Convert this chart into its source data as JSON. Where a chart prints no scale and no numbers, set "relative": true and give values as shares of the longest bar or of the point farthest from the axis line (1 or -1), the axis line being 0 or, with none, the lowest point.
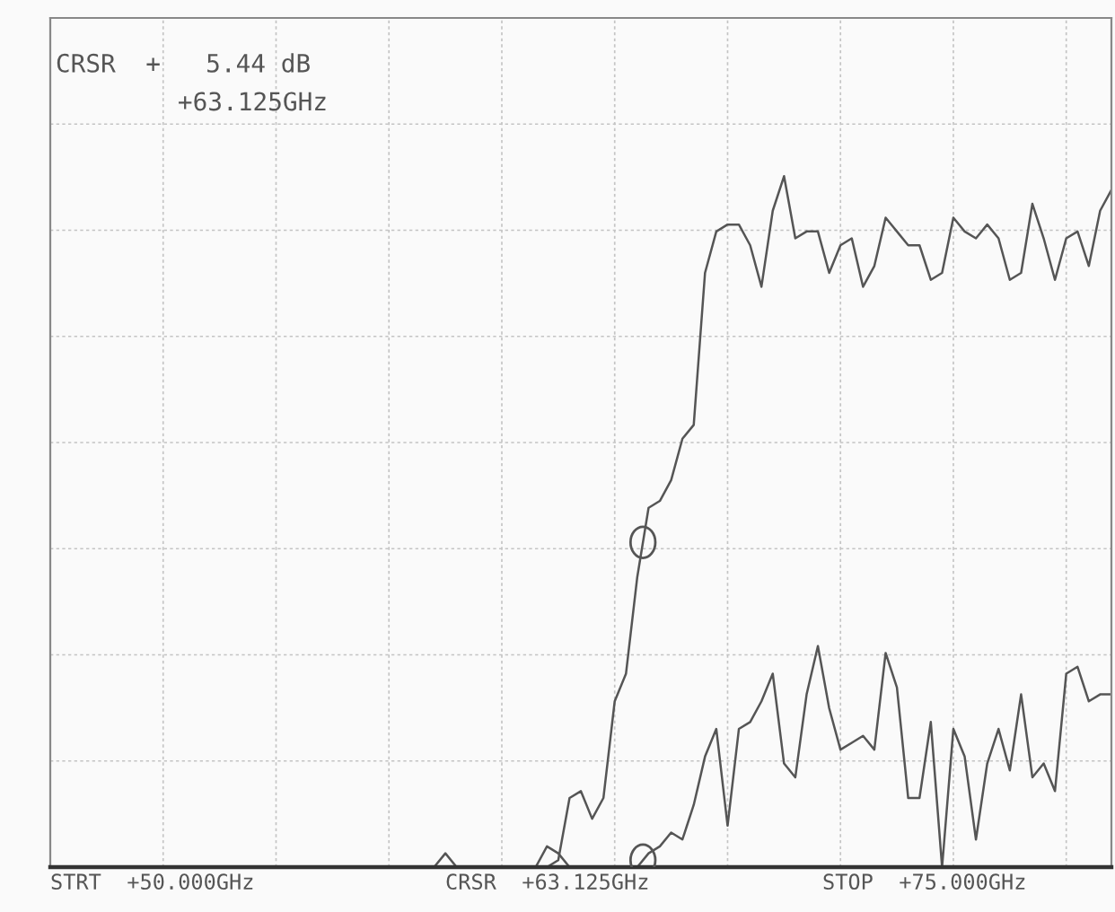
{
  "chart_data": {
    "type": "line",
    "relative": true,
    "grid": true,
    "tick_labels": false,
    "legend": false,
    "annotations": [
      "CRSR  +   5.44 dB",
      "+63.125GHz",
      "STRT  +50.000GHz",
      "CRSR  +63.125GHz",
      "STOP  +75.000GHz"
    ],
    "categories": [
      null,
      null,
      null,
      null,
      null,
      null,
      null,
      null,
      null,
      null,
      null,
      null,
      null,
      null,
      null,
      null,
      null,
      null,
      null,
      null,
      null,
      null,
      null,
      null,
      null,
      null,
      null,
      null,
      null,
      null,
      null,
      null,
      null,
      null,
      null,
      null,
      null,
      null,
      null,
      null,
      null,
      null,
      null,
      null,
      null,
      null,
      null,
      null,
      null,
      null,
      null,
      null,
      null,
      null,
      null,
      null,
      null,
      null,
      null,
      null,
      null,
      null,
      null,
      null,
      null,
      null,
      null,
      null,
      null,
      null,
      null,
      null,
      null,
      null,
      null,
      null,
      null,
      null,
      null,
      null,
      null,
      null,
      null,
      null,
      null,
      null,
      null,
      null,
      null,
      null,
      null,
      null,
      null,
      null,
      null
    ],
    "series": [
      {
        "color": "#555555",
        "values": [
          0,
          0,
          0,
          0,
          0,
          0,
          0,
          0,
          0,
          0,
          0,
          0,
          0,
          0,
          0,
          0,
          0,
          0,
          0,
          0,
          0,
          0,
          0,
          0,
          0,
          0,
          0,
          0,
          0,
          0,
          0,
          0,
          0,
          0,
          0,
          0.02,
          0,
          0,
          0,
          0,
          0,
          0,
          0,
          0,
          0,
          0.01,
          0.1,
          0.11,
          0.07,
          0.1,
          0.24,
          0.28,
          0.42,
          0.52,
          0.53,
          0.56,
          0.62,
          0.64,
          0.86,
          0.92,
          0.93,
          0.93,
          0.9,
          0.84,
          0.95,
          1,
          0.91,
          0.92,
          0.92,
          0.86,
          0.9,
          0.91,
          0.84,
          0.87,
          0.94,
          0.92,
          0.9,
          0.9,
          0.85,
          0.86,
          0.94,
          0.92,
          0.91,
          0.93,
          0.91,
          0.85,
          0.86,
          0.96,
          0.91,
          0.85,
          0.91,
          0.92,
          0.87,
          0.95,
          0.98
        ]
      },
      {
        "color": "#555555",
        "values": [
          0,
          0,
          0,
          0,
          0,
          0,
          0,
          0,
          0,
          0,
          0,
          0,
          0,
          0,
          0,
          0,
          0,
          0,
          0,
          0,
          0,
          0,
          0,
          0,
          0,
          0,
          0,
          0,
          0,
          0,
          0,
          0,
          0,
          0,
          0,
          0,
          0,
          0,
          0,
          0,
          0,
          0,
          0,
          0,
          0.03,
          0.02,
          0,
          0,
          0,
          0,
          0,
          0,
          0,
          0.02,
          0.03,
          0.05,
          0.04,
          0.09,
          0.16,
          0.2,
          0.06,
          0.2,
          0.21,
          0.24,
          0.28,
          0.15,
          0.13,
          0.25,
          0.32,
          0.23,
          0.17,
          0.18,
          0.19,
          0.17,
          0.31,
          0.26,
          0.1,
          0.1,
          0.21,
          0,
          0.2,
          0.16,
          0.04,
          0.15,
          0.2,
          0.14,
          0.25,
          0.13,
          0.15,
          0.11,
          0.28,
          0.29,
          0.24,
          0.25,
          0.25
        ]
      }
    ]
  }
}
